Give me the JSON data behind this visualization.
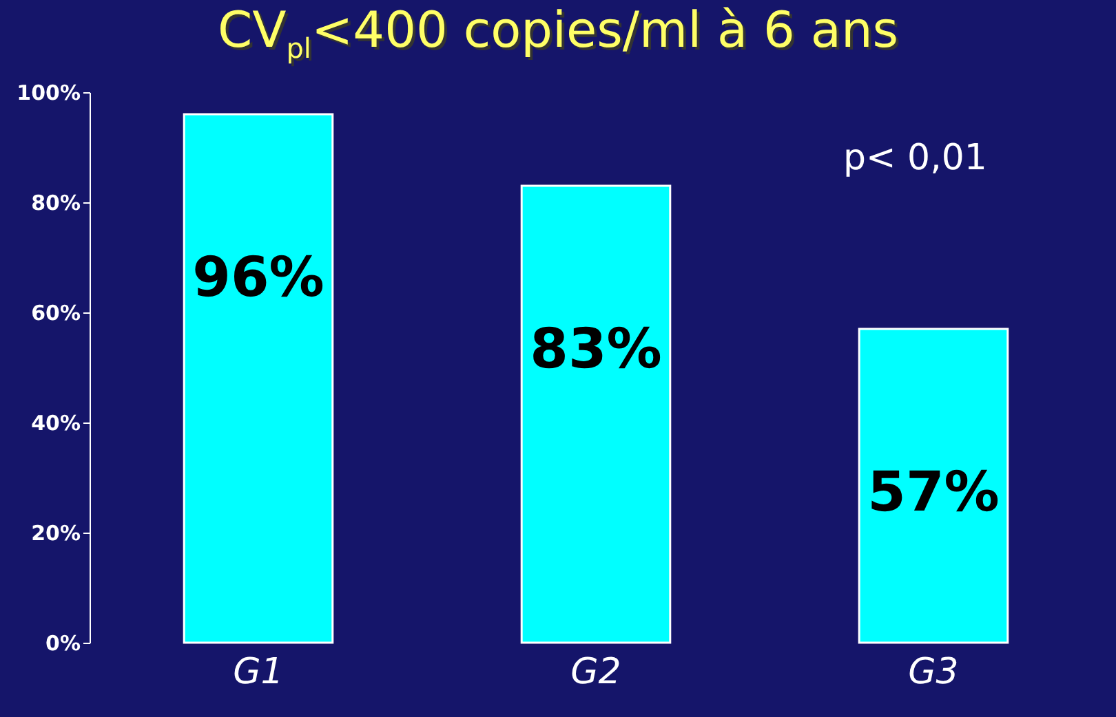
{
  "chart_data": {
    "type": "bar",
    "title": "CV$_{pl}$<400 copies/ml  à 6 ans",
    "categories": [
      "G1",
      "G2",
      "G3"
    ],
    "values": [
      96,
      83,
      57
    ],
    "color": "#00ffff",
    "data_labels": true,
    "value_labels": [
      "96%",
      "83%",
      "57%"
    ],
    "ylim": [
      0,
      100
    ],
    "yticks": [
      {
        "value": 0,
        "label": "0%"
      },
      {
        "value": 20,
        "label": "20%"
      },
      {
        "value": 40,
        "label": "40%"
      },
      {
        "value": 60,
        "label": "60%"
      },
      {
        "value": 80,
        "label": "80%"
      },
      {
        "value": 100,
        "label": "100%"
      }
    ],
    "grid": false,
    "annotations": [
      "p< 0,01"
    ]
  }
}
